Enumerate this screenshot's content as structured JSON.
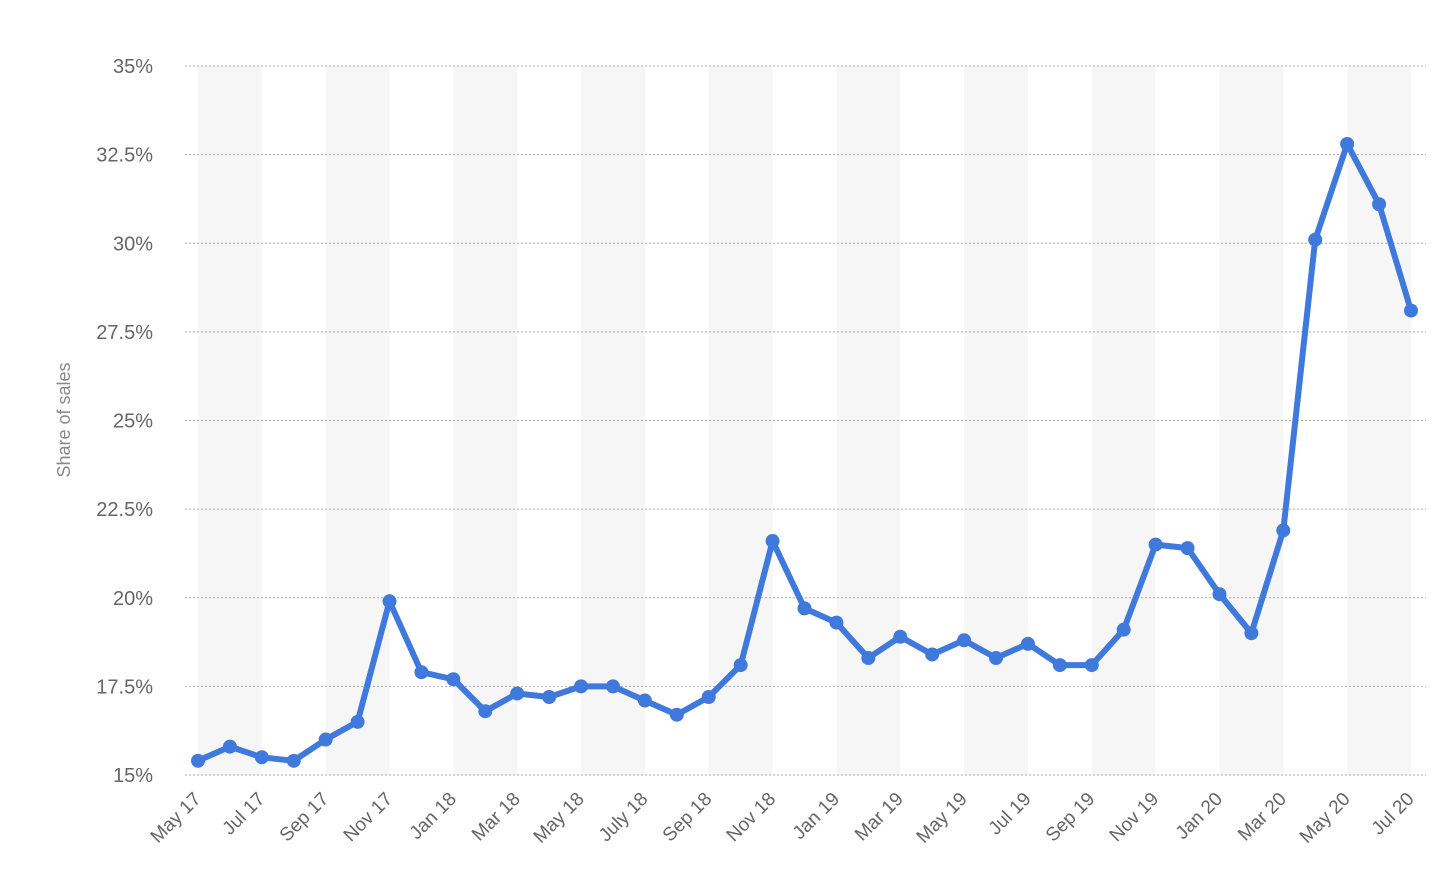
{
  "chart_data": {
    "type": "line",
    "title": "",
    "xlabel": "",
    "ylabel": "Share of sales",
    "ylim": [
      15,
      35
    ],
    "yticks": [
      "15%",
      "17.5%",
      "20%",
      "22.5%",
      "25%",
      "27.5%",
      "30%",
      "32.5%",
      "35%"
    ],
    "ytick_values": [
      15,
      17.5,
      20,
      22.5,
      25,
      27.5,
      30,
      32.5,
      35
    ],
    "xtick_labels": [
      "May 17",
      "Jul 17",
      "Sep 17",
      "Nov 17",
      "Jan 18",
      "Mar 18",
      "May 18",
      "July 18",
      "Sep 18",
      "Nov 18",
      "Jan 19",
      "Mar 19",
      "May 19",
      "Jul 19",
      "Sep 19",
      "Nov 19",
      "Jan 20",
      "Mar 20",
      "May 20",
      "Jul 20"
    ],
    "grid": true,
    "series": [
      {
        "values": [
          15.4,
          15.8,
          15.5,
          15.4,
          16.0,
          16.5,
          19.9,
          17.9,
          17.7,
          16.8,
          17.3,
          17.2,
          17.5,
          17.5,
          17.1,
          16.7,
          17.2,
          18.1,
          21.6,
          19.7,
          19.3,
          18.3,
          18.9,
          18.4,
          18.8,
          18.3,
          18.7,
          18.1,
          18.1,
          19.1,
          21.5,
          21.4,
          20.1,
          19.0,
          21.9,
          30.1,
          32.8,
          31.1,
          28.1
        ]
      }
    ],
    "colors": {
      "line": "#3f79dc",
      "grid": "#aaaaaa",
      "band": "#f6f6f6",
      "tick_text": "#666666",
      "axis_label": "#888888"
    }
  }
}
